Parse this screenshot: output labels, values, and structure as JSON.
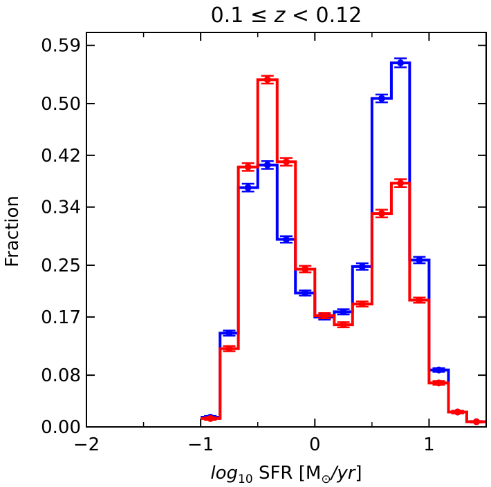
{
  "chart_data": {
    "type": "histogram-step",
    "title": "0.1 ≤ z < 0.12",
    "title_parts": {
      "pre": "0.1 ≤ ",
      "var": "z",
      "post": " < 0.12"
    },
    "xlabel": "log10 SFR [M⊙/yr]",
    "xlabel_parts": {
      "italic_base": "log",
      "sub": "10",
      "mid": " SFR [M",
      "sun_sub": "⊙",
      "slash": "/",
      "italic_unit": "yr",
      "end": "]"
    },
    "ylabel": "Fraction",
    "xlim": [
      -2.0,
      1.5
    ],
    "ylim": [
      0.0,
      0.61
    ],
    "x_ticks": [
      -2,
      -1,
      0,
      1
    ],
    "x_tick_labels": [
      "−2",
      "−1",
      "0",
      "1"
    ],
    "x_minor_ticks": [
      -1.5,
      -0.5,
      0.5
    ],
    "y_ticks": [
      0.0,
      0.08,
      0.17,
      0.25,
      0.34,
      0.42,
      0.5,
      0.59
    ],
    "y_tick_labels": [
      "0.00",
      "0.08",
      "0.17",
      "0.25",
      "0.34",
      "0.42",
      "0.50",
      "0.59"
    ],
    "bin_edges": [
      -2.0,
      -1.83,
      -1.67,
      -1.5,
      -1.33,
      -1.17,
      -1.0,
      -0.83,
      -0.67,
      -0.5,
      -0.33,
      -0.17,
      0.0,
      0.17,
      0.33,
      0.5,
      0.67,
      0.83,
      1.0,
      1.17,
      1.33,
      1.5
    ],
    "series": [
      {
        "name": "blue",
        "color": "#0000ff",
        "values": [
          0.015,
          0.145,
          0.37,
          0.405,
          0.29,
          0.207,
          0.17,
          0.178,
          0.248,
          0.508,
          0.563,
          0.258,
          0.088,
          0.023,
          0.008
        ],
        "errors": [
          0.002,
          0.004,
          0.006,
          0.006,
          0.005,
          0.004,
          0.004,
          0.004,
          0.005,
          0.006,
          0.007,
          0.005,
          0.003,
          0.002,
          0.001
        ],
        "start_index": 6
      },
      {
        "name": "red",
        "color": "#ff0000",
        "values": [
          0.013,
          0.121,
          0.402,
          0.537,
          0.41,
          0.244,
          0.172,
          0.158,
          0.19,
          0.33,
          0.377,
          0.196,
          0.068,
          0.023,
          0.008
        ],
        "errors": [
          0.002,
          0.004,
          0.006,
          0.006,
          0.006,
          0.005,
          0.004,
          0.004,
          0.004,
          0.006,
          0.006,
          0.004,
          0.003,
          0.002,
          0.001
        ],
        "start_index": 6
      }
    ]
  }
}
